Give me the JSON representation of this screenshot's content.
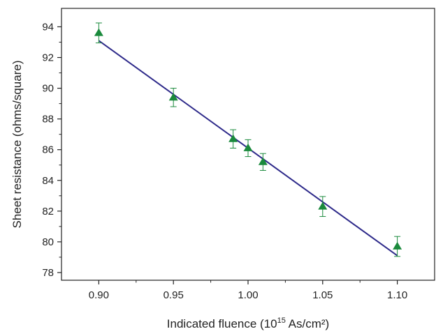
{
  "chart_data": {
    "type": "scatter",
    "xlabel_main": "Indicated fluence (10",
    "xlabel_sup": "15",
    "xlabel_tail": " As/cm²)",
    "ylabel": "Sheet resistance (ohms/square)",
    "xlim": [
      0.875,
      1.125
    ],
    "ylim": [
      77.5,
      95.2
    ],
    "x_ticks": [
      0.9,
      0.95,
      1.0,
      1.05,
      1.1
    ],
    "x_tick_labels": [
      "0.90",
      "0.95",
      "1.00",
      "1.05",
      "1.10"
    ],
    "y_ticks": [
      78,
      80,
      82,
      84,
      86,
      88,
      90,
      92,
      94
    ],
    "y_tick_labels": [
      "78",
      "80",
      "82",
      "84",
      "86",
      "88",
      "90",
      "92",
      "94"
    ],
    "grid": false,
    "series": [
      {
        "marker": "triangle",
        "color": "#1a8a3c",
        "points": [
          {
            "x": 0.9,
            "y": 93.6,
            "err": 0.65
          },
          {
            "x": 0.95,
            "y": 89.4,
            "err": 0.6
          },
          {
            "x": 0.99,
            "y": 86.7,
            "err": 0.6
          },
          {
            "x": 1.0,
            "y": 86.1,
            "err": 0.55
          },
          {
            "x": 1.01,
            "y": 85.2,
            "err": 0.55
          },
          {
            "x": 1.05,
            "y": 82.3,
            "err": 0.65
          },
          {
            "x": 1.1,
            "y": 79.7,
            "err": 0.65
          }
        ]
      }
    ],
    "fit_line": {
      "color": "#2e2a8a",
      "start": {
        "x": 0.9,
        "y": 93.1
      },
      "end": {
        "x": 1.1,
        "y": 79.1
      }
    }
  }
}
